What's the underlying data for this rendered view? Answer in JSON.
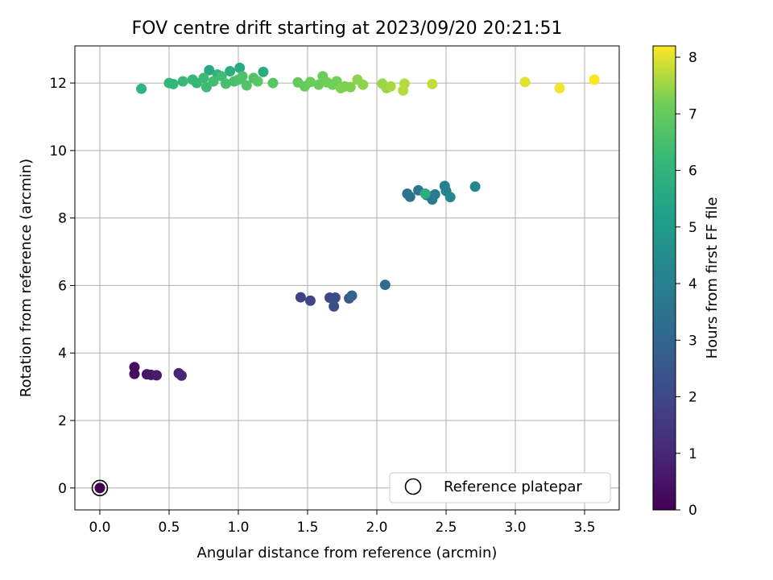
{
  "chart_data": {
    "type": "scatter",
    "title": "FOV centre drift starting at 2023/09/20 20:21:51",
    "xlabel": "Angular distance from reference (arcmin)",
    "ylabel": "Rotation from reference (arcmin)",
    "xlim": [
      -0.18,
      3.75
    ],
    "ylim": [
      -0.65,
      13.1
    ],
    "xticks": [
      "0.0",
      "0.5",
      "1.0",
      "1.5",
      "2.0",
      "2.5",
      "3.0",
      "3.5"
    ],
    "yticks": [
      "0",
      "2",
      "4",
      "6",
      "8",
      "10",
      "12"
    ],
    "grid": true,
    "legend": {
      "position": "lower-right",
      "entries": [
        "Reference platepar"
      ]
    },
    "colorbar": {
      "label": "Hours from first FF file",
      "colormap": "viridis",
      "range": [
        0,
        8.2
      ],
      "ticks": [
        "0",
        "1",
        "2",
        "3",
        "4",
        "5",
        "6",
        "7",
        "8"
      ]
    },
    "reference_point": {
      "x": 0.0,
      "y": 0.0
    },
    "points": [
      {
        "x": 0.0,
        "y": 0.0,
        "h": 0.0
      },
      {
        "x": 0.25,
        "y": 3.38,
        "h": 0.3
      },
      {
        "x": 0.25,
        "y": 3.58,
        "h": 0.35
      },
      {
        "x": 0.34,
        "y": 3.37,
        "h": 0.5
      },
      {
        "x": 0.37,
        "y": 3.35,
        "h": 0.6
      },
      {
        "x": 0.41,
        "y": 3.34,
        "h": 0.7
      },
      {
        "x": 0.57,
        "y": 3.4,
        "h": 0.9
      },
      {
        "x": 0.59,
        "y": 3.33,
        "h": 1.0
      },
      {
        "x": 1.45,
        "y": 5.65,
        "h": 1.8
      },
      {
        "x": 1.52,
        "y": 5.55,
        "h": 1.9
      },
      {
        "x": 1.66,
        "y": 5.64,
        "h": 2.0
      },
      {
        "x": 1.7,
        "y": 5.64,
        "h": 2.1
      },
      {
        "x": 1.69,
        "y": 5.38,
        "h": 2.2
      },
      {
        "x": 1.8,
        "y": 5.62,
        "h": 2.5
      },
      {
        "x": 1.82,
        "y": 5.7,
        "h": 2.9
      },
      {
        "x": 2.06,
        "y": 6.02,
        "h": 3.2
      },
      {
        "x": 2.22,
        "y": 8.72,
        "h": 3.4
      },
      {
        "x": 2.24,
        "y": 8.63,
        "h": 3.5
      },
      {
        "x": 2.3,
        "y": 8.82,
        "h": 3.6
      },
      {
        "x": 2.36,
        "y": 8.68,
        "h": 3.7
      },
      {
        "x": 2.4,
        "y": 8.55,
        "h": 3.8
      },
      {
        "x": 2.42,
        "y": 8.7,
        "h": 3.9
      },
      {
        "x": 2.49,
        "y": 8.95,
        "h": 4.0
      },
      {
        "x": 2.5,
        "y": 8.8,
        "h": 4.1
      },
      {
        "x": 2.53,
        "y": 8.62,
        "h": 4.2
      },
      {
        "x": 2.71,
        "y": 8.93,
        "h": 4.3
      },
      {
        "x": 2.35,
        "y": 8.72,
        "h": 5.8
      },
      {
        "x": 0.79,
        "y": 12.38,
        "h": 5.5
      },
      {
        "x": 1.01,
        "y": 12.45,
        "h": 5.6
      },
      {
        "x": 1.18,
        "y": 12.33,
        "h": 5.7
      },
      {
        "x": 0.94,
        "y": 12.35,
        "h": 5.8
      },
      {
        "x": 0.85,
        "y": 12.25,
        "h": 5.9
      },
      {
        "x": 0.3,
        "y": 11.83,
        "h": 6.0
      },
      {
        "x": 0.5,
        "y": 12.0,
        "h": 6.1
      },
      {
        "x": 0.53,
        "y": 11.97,
        "h": 6.1
      },
      {
        "x": 0.6,
        "y": 12.05,
        "h": 6.2
      },
      {
        "x": 0.67,
        "y": 12.1,
        "h": 6.2
      },
      {
        "x": 0.7,
        "y": 12.0,
        "h": 6.2
      },
      {
        "x": 0.75,
        "y": 12.15,
        "h": 6.3
      },
      {
        "x": 0.77,
        "y": 11.88,
        "h": 6.3
      },
      {
        "x": 0.82,
        "y": 12.05,
        "h": 6.4
      },
      {
        "x": 0.88,
        "y": 12.2,
        "h": 6.4
      },
      {
        "x": 0.91,
        "y": 11.98,
        "h": 6.5
      },
      {
        "x": 0.97,
        "y": 12.05,
        "h": 6.5
      },
      {
        "x": 1.0,
        "y": 12.1,
        "h": 6.6
      },
      {
        "x": 1.03,
        "y": 12.2,
        "h": 6.6
      },
      {
        "x": 1.06,
        "y": 11.93,
        "h": 6.7
      },
      {
        "x": 1.11,
        "y": 12.15,
        "h": 6.7
      },
      {
        "x": 1.14,
        "y": 12.05,
        "h": 6.8
      },
      {
        "x": 1.25,
        "y": 12.0,
        "h": 6.8
      },
      {
        "x": 1.43,
        "y": 12.02,
        "h": 7.0
      },
      {
        "x": 1.48,
        "y": 11.9,
        "h": 7.0
      },
      {
        "x": 1.52,
        "y": 12.03,
        "h": 7.1
      },
      {
        "x": 1.58,
        "y": 11.95,
        "h": 7.1
      },
      {
        "x": 1.61,
        "y": 12.2,
        "h": 7.1
      },
      {
        "x": 1.64,
        "y": 12.02,
        "h": 7.2
      },
      {
        "x": 1.68,
        "y": 11.95,
        "h": 7.2
      },
      {
        "x": 1.71,
        "y": 12.05,
        "h": 7.2
      },
      {
        "x": 1.74,
        "y": 11.85,
        "h": 7.3
      },
      {
        "x": 1.77,
        "y": 11.9,
        "h": 7.3
      },
      {
        "x": 1.81,
        "y": 11.88,
        "h": 7.3
      },
      {
        "x": 1.86,
        "y": 12.1,
        "h": 7.4
      },
      {
        "x": 1.9,
        "y": 11.95,
        "h": 7.4
      },
      {
        "x": 2.04,
        "y": 11.98,
        "h": 7.5
      },
      {
        "x": 2.07,
        "y": 11.85,
        "h": 7.5
      },
      {
        "x": 2.1,
        "y": 11.9,
        "h": 7.6
      },
      {
        "x": 2.19,
        "y": 11.78,
        "h": 7.7
      },
      {
        "x": 2.2,
        "y": 11.98,
        "h": 7.7
      },
      {
        "x": 2.4,
        "y": 11.97,
        "h": 7.8
      },
      {
        "x": 3.07,
        "y": 12.03,
        "h": 8.0
      },
      {
        "x": 3.32,
        "y": 11.85,
        "h": 8.1
      },
      {
        "x": 3.57,
        "y": 12.1,
        "h": 8.2
      }
    ]
  }
}
